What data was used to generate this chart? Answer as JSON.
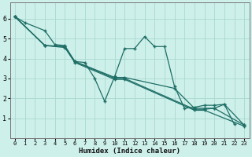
{
  "xlabel": "Humidex (Indice chaleur)",
  "xlim": [
    -0.5,
    23.5
  ],
  "ylim": [
    0,
    6.8
  ],
  "xticks": [
    0,
    1,
    2,
    3,
    4,
    5,
    6,
    7,
    8,
    9,
    10,
    11,
    12,
    13,
    14,
    15,
    16,
    17,
    18,
    19,
    20,
    21,
    22,
    23
  ],
  "yticks": [
    1,
    2,
    3,
    4,
    5,
    6
  ],
  "bg_color": "#cef0ea",
  "line_color": "#1e6e66",
  "grid_color": "#aad8d0",
  "lines": [
    {
      "x": [
        0,
        1,
        3,
        4,
        5,
        6,
        7,
        8,
        9,
        10,
        11,
        12,
        13,
        14,
        15,
        16,
        17,
        18,
        19,
        20,
        21,
        22
      ],
      "y": [
        6.1,
        5.8,
        5.4,
        4.7,
        4.65,
        3.85,
        3.8,
        3.0,
        1.85,
        3.1,
        4.5,
        4.5,
        5.1,
        4.6,
        4.6,
        2.6,
        1.5,
        1.55,
        1.65,
        1.65,
        1.7,
        0.7
      ]
    },
    {
      "x": [
        0,
        3,
        5,
        6,
        10,
        11,
        16,
        18,
        19,
        20,
        21,
        23
      ],
      "y": [
        6.1,
        4.65,
        4.6,
        3.85,
        3.05,
        3.05,
        2.5,
        1.5,
        1.5,
        1.5,
        1.7,
        0.65
      ]
    },
    {
      "x": [
        0,
        3,
        5,
        6,
        10,
        11,
        18,
        19,
        20,
        23
      ],
      "y": [
        6.1,
        4.65,
        4.6,
        3.85,
        3.0,
        3.0,
        1.45,
        1.45,
        1.5,
        0.65
      ]
    },
    {
      "x": [
        0,
        3,
        5,
        6,
        10,
        11,
        18,
        19,
        23
      ],
      "y": [
        6.1,
        4.65,
        4.55,
        3.8,
        2.95,
        2.95,
        1.4,
        1.4,
        0.6
      ]
    }
  ]
}
